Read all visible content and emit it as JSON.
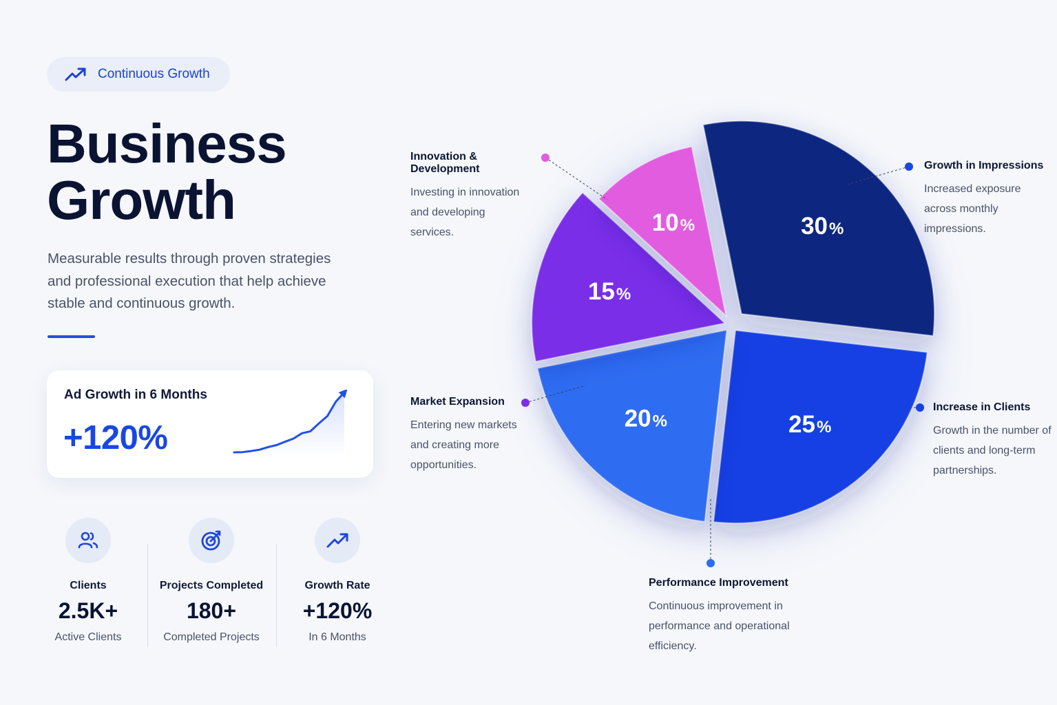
{
  "badge": {
    "label": "Continuous Growth",
    "icon": "trend-up-icon",
    "color": "#1e40d6"
  },
  "hero": {
    "title_line1": "Business",
    "title_line2": "Growth",
    "subtitle": "Measurable results through proven strategies and professional execution that help achieve stable and continuous growth."
  },
  "ad_card": {
    "title": "Ad Growth in 6 Months",
    "value": "+120%",
    "sparkline": [
      1,
      1.4,
      3,
      5,
      9,
      12,
      17,
      22,
      30,
      33,
      45,
      56,
      78,
      92
    ]
  },
  "stats": [
    {
      "icon": "users-icon",
      "label": "Clients",
      "value": "2.5K+",
      "sub": "Active Clients"
    },
    {
      "icon": "target-icon",
      "label": "Projects Completed",
      "value": "180+",
      "sub": "Completed Projects"
    },
    {
      "icon": "trend-up-icon",
      "label": "Growth Rate",
      "value": "+120%",
      "sub": "In 6 Months"
    }
  ],
  "chart_data": {
    "type": "pie",
    "slices": [
      {
        "name": "Growth in Impressions",
        "value": 30,
        "label": "30",
        "color": "#0c2680",
        "desc": "Increased exposure across monthly impressions."
      },
      {
        "name": "Increase in Clients",
        "value": 25,
        "label": "25",
        "color": "#1740e4",
        "desc": "Growth in the number of clients and long-term partnerships."
      },
      {
        "name": "Performance Improvement",
        "value": 20,
        "label": "20",
        "color": "#2e6cf1",
        "desc": "Continuous improvement in performance and operational efficiency."
      },
      {
        "name": "Market Expansion",
        "value": 15,
        "label": "15",
        "color": "#7a2fe8",
        "desc": "Entering new markets and creating more opportunities."
      },
      {
        "name": "Innovation & Development",
        "value": 10,
        "label": "10",
        "color": "#e25be0",
        "desc": "Investing in innovation and developing services."
      }
    ],
    "unit": "%"
  }
}
